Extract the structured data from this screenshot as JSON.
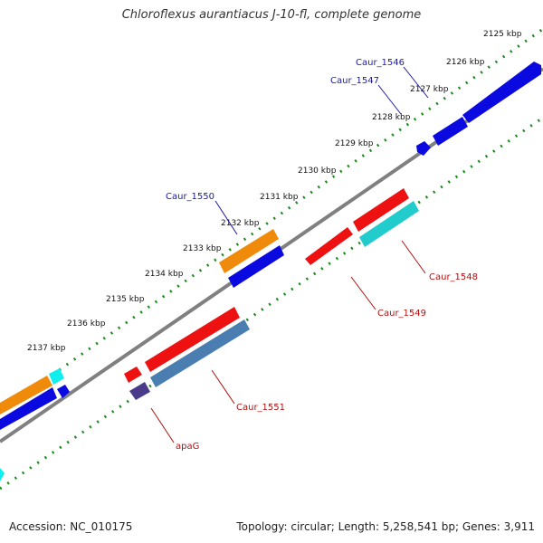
{
  "title": "Chloroflexus aurantiacus J-10-fl, complete genome",
  "footer": {
    "accession": "Accession: NC_010175",
    "info": "Topology: circular; Length: 5,258,541 bp; Genes: 3,911"
  },
  "ticks": [
    "2125 kbp",
    "2126 kbp",
    "2127 kbp",
    "2128 kbp",
    "2129 kbp",
    "2130 kbp",
    "2131 kbp",
    "2132 kbp",
    "2133 kbp",
    "2134 kbp",
    "2135 kbp",
    "2136 kbp",
    "2137 kbp"
  ],
  "gene_labels": {
    "caur_1546": "Caur_1546",
    "caur_1547": "Caur_1547",
    "caur_1550": "Caur_1550",
    "caur_1548": "Caur_1548",
    "caur_1549": "Caur_1549",
    "caur_1551": "Caur_1551",
    "apag": "apaG"
  },
  "colors": {
    "backbone": "#808080",
    "tick_green": "#1a8a1a",
    "red": "#ee1111",
    "blue": "#0a0ae0",
    "orange": "#f08a0a",
    "cyan": "#22cccc",
    "bright_cyan": "#11eeee",
    "steel_blue": "#4a7eb0",
    "dark_slate": "#4a3a8a"
  }
}
